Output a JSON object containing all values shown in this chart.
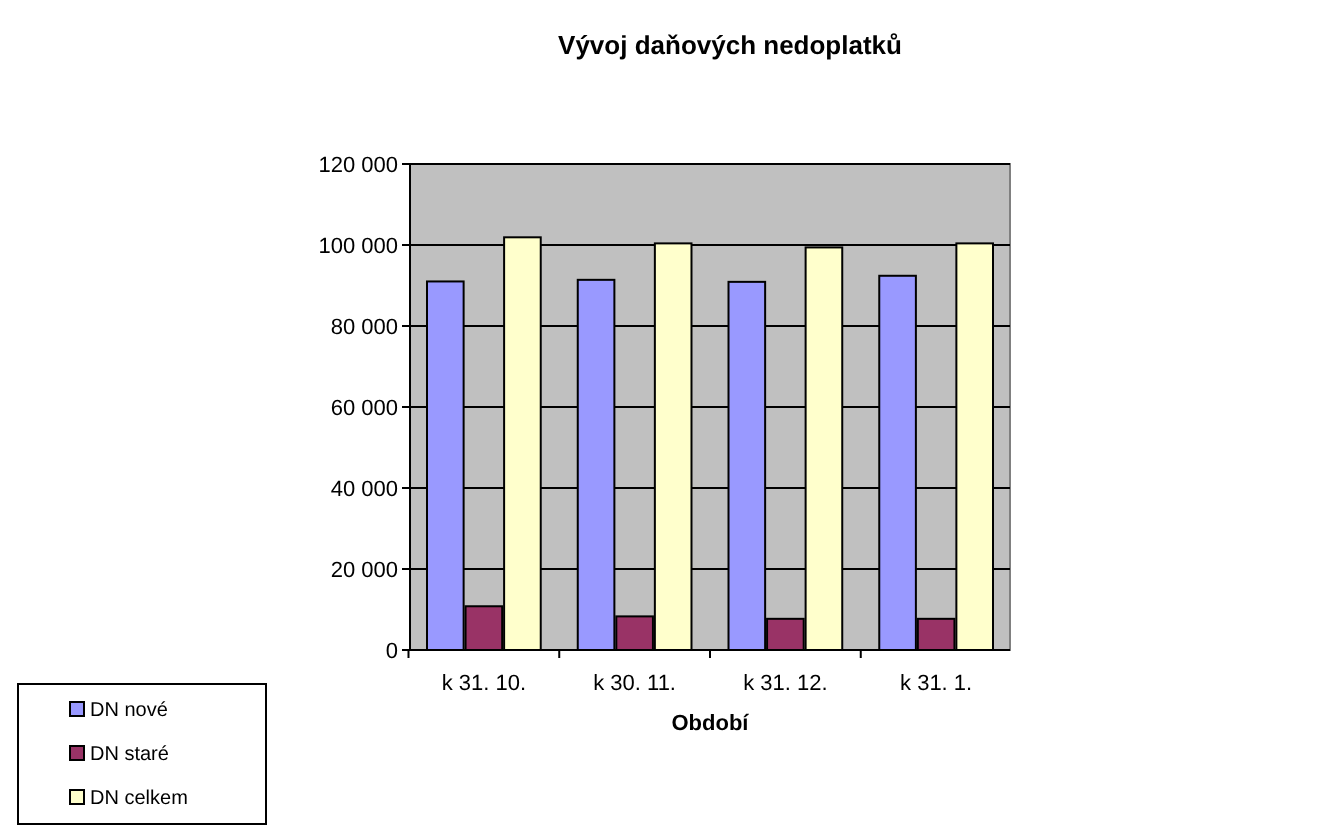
{
  "chart_data": {
    "type": "bar",
    "title": "Vývoj daňových nedoplatků",
    "xlabel": "Období",
    "categories": [
      "k 31. 10.",
      "k 30. 11.",
      "k 31. 12.",
      "k 31. 1."
    ],
    "series": [
      {
        "name": "DN nové",
        "color": "#9999ff",
        "values": [
          91000,
          91400,
          90900,
          92400
        ]
      },
      {
        "name": "DN staré",
        "color": "#993366",
        "values": [
          10800,
          8300,
          7700,
          7700
        ]
      },
      {
        "name": "DN celkem",
        "color": "#ffffcc",
        "values": [
          101900,
          100400,
          99400,
          100400
        ]
      }
    ],
    "ylim": [
      0,
      120000
    ],
    "yticks": [
      {
        "value": 0,
        "label": "0"
      },
      {
        "value": 20000,
        "label": "20 000"
      },
      {
        "value": 40000,
        "label": "40 000"
      },
      {
        "value": 60000,
        "label": "60 000"
      },
      {
        "value": 80000,
        "label": "80 000"
      },
      {
        "value": 100000,
        "label": "100 000"
      },
      {
        "value": 120000,
        "label": "120 000"
      }
    ],
    "grid": "y",
    "legend": "bottom left"
  }
}
